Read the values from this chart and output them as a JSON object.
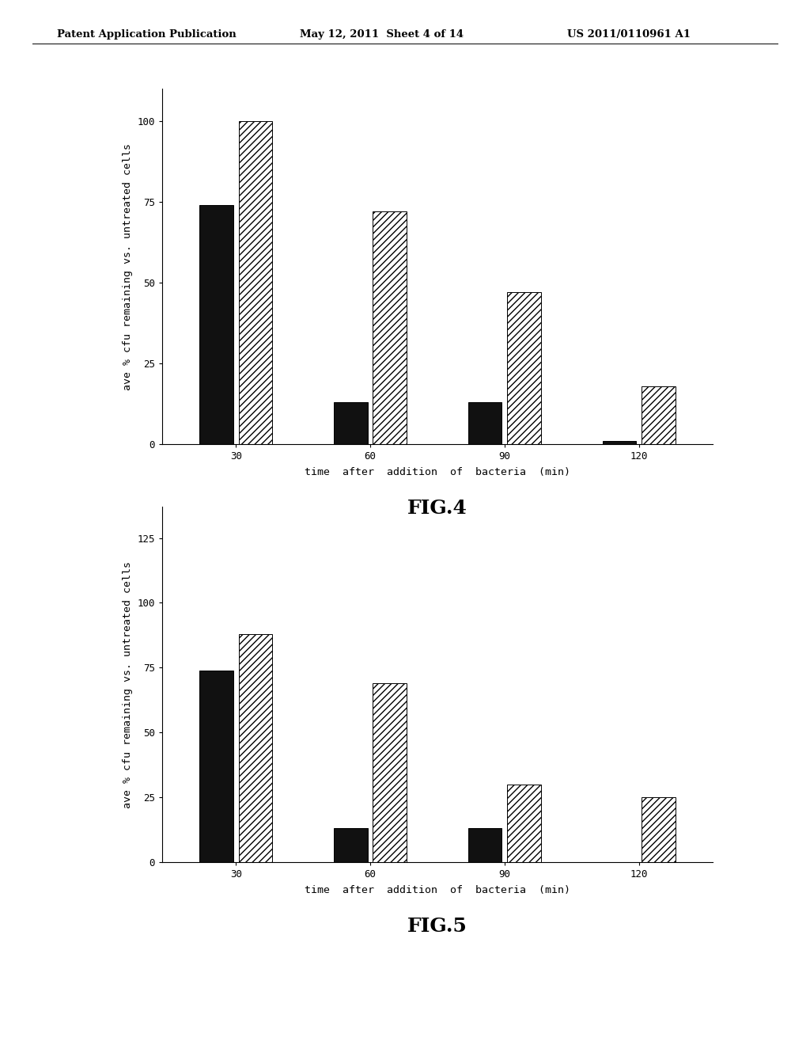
{
  "fig4": {
    "categories": [
      "30",
      "60",
      "90",
      "120"
    ],
    "black_values": [
      74,
      13,
      13,
      1
    ],
    "hatch_values": [
      100,
      72,
      47,
      18
    ],
    "ylabel": "ave % cfu remaining vs. untreated cells",
    "xlabel": "time  after  addition  of  bacteria  (min)",
    "ylim": [
      0,
      110
    ],
    "yticks": [
      0,
      25,
      50,
      75,
      100
    ],
    "title": "FIG.4"
  },
  "fig5": {
    "categories": [
      "30",
      "60",
      "90",
      "120"
    ],
    "black_values": [
      74,
      13,
      13,
      0
    ],
    "hatch_values": [
      88,
      69,
      30,
      25
    ],
    "ylabel": "ave % cfu remaining vs. untreated cells",
    "xlabel": "time  after  addition  of  bacteria  (min)",
    "ylim": [
      0,
      137
    ],
    "yticks": [
      0,
      25,
      50,
      75,
      100,
      125
    ],
    "title": "FIG.5"
  },
  "header_left": "Patent Application Publication",
  "header_center": "May 12, 2011  Sheet 4 of 14",
  "header_right": "US 2011/0110961 A1",
  "background_color": "#ffffff",
  "bar_width": 0.25,
  "black_color": "#111111",
  "hatch_pattern": "////",
  "font_size_axis_label": 9.5,
  "font_size_tick": 9,
  "font_size_fig_label": 18,
  "font_size_header": 9.5
}
